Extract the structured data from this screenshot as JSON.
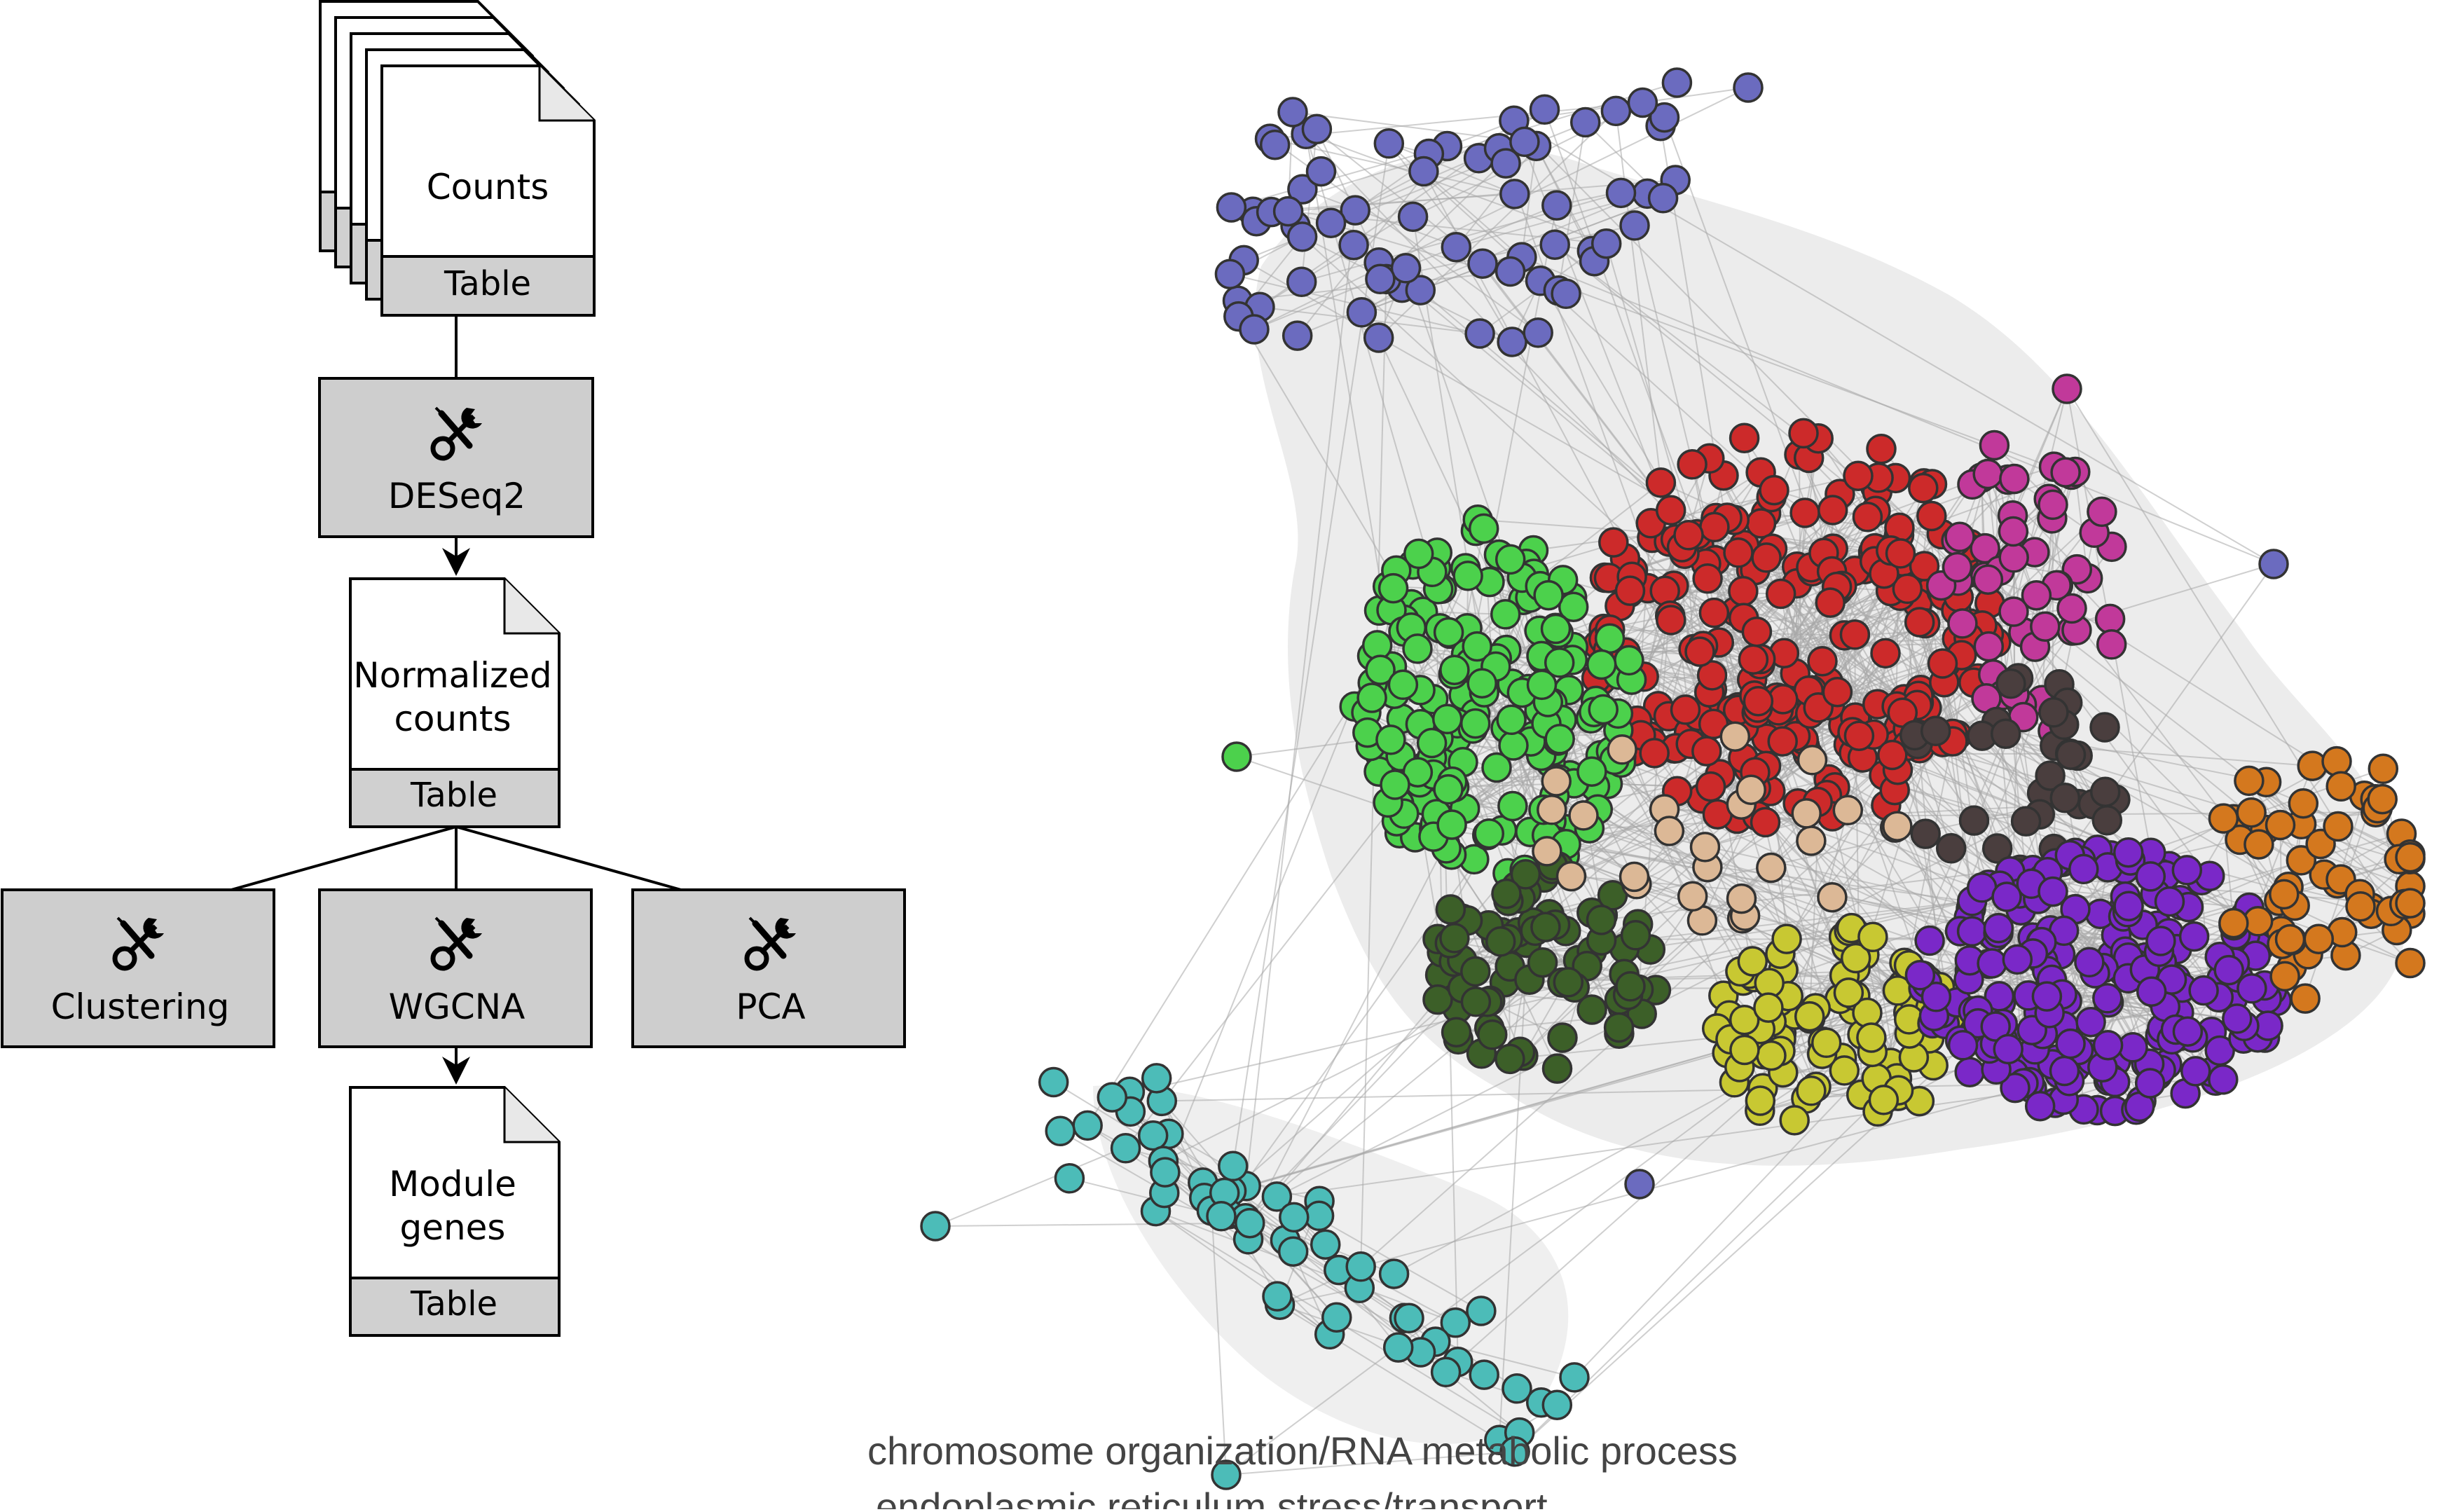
{
  "workflow": {
    "counts": {
      "title": "Counts",
      "type": "Table"
    },
    "deseq2": {
      "label": "DESeq2",
      "icon": "tools-icon"
    },
    "normalized": {
      "line1": "Normalized",
      "line2": "counts",
      "type": "Table"
    },
    "clustering": {
      "label": "Clustering",
      "icon": "tools-icon"
    },
    "wgcna": {
      "label": "WGCNA",
      "icon": "tools-icon"
    },
    "pca": {
      "label": "PCA",
      "icon": "tools-icon"
    },
    "module": {
      "line1": "Module",
      "line2": "genes",
      "type": "Table"
    }
  },
  "network": {
    "modules": [
      {
        "name": "blue",
        "color": "#6b6bbf"
      },
      {
        "name": "red",
        "color": "#cc2a2a"
      },
      {
        "name": "magenta",
        "color": "#c1399a"
      },
      {
        "name": "green",
        "color": "#4cd14c"
      },
      {
        "name": "darkgreen",
        "color": "#3c5f28"
      },
      {
        "name": "tan",
        "color": "#dcb896"
      },
      {
        "name": "darkgray",
        "color": "#4a3e3e"
      },
      {
        "name": "yellow",
        "color": "#c8c832"
      },
      {
        "name": "purple",
        "color": "#7a28c8"
      },
      {
        "name": "orange",
        "color": "#d4781e"
      },
      {
        "name": "turquoise",
        "color": "#4cbcb8"
      }
    ],
    "edge_color": "#a8a8a8",
    "legend": [
      "chromosome organization/RNA metabolic process",
      "endoplasmic reticulum stress/transport"
    ]
  }
}
